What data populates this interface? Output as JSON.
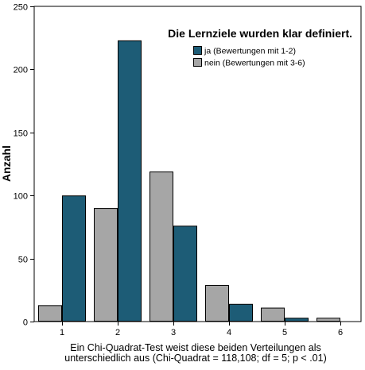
{
  "chart_data": {
    "type": "bar",
    "title": "Die Lernziele wurden klar definiert.",
    "xlabel": "Ein Chi-Quadrat-Test weist diese beiden Verteilungen als unterschiedlich aus (Chi-Quadrat = 118,108; df = 5; p < .01)",
    "xlabel_lines": [
      "Ein Chi-Quadrat-Test weist diese beiden Verteilungen als",
      "unterschiedlich aus (Chi-Quadrat = 118,108; df = 5; p < .01)"
    ],
    "ylabel": "Anzahl",
    "categories": [
      "1",
      "2",
      "3",
      "4",
      "5",
      "6"
    ],
    "ylim": [
      0,
      250
    ],
    "yticks": [
      0,
      50,
      100,
      150,
      200,
      250
    ],
    "grid": false,
    "legend_position": "top-right",
    "series": [
      {
        "name": "nein (Bewertungen mit 3-6)",
        "color": "#a6a6a6",
        "values": [
          13,
          90,
          119,
          29,
          11,
          3
        ]
      },
      {
        "name": "ja (Bewertungen mit 1-2)",
        "color": "#1d5c76",
        "values": [
          100,
          223,
          76,
          14,
          3,
          0
        ]
      }
    ],
    "legend_order": [
      1,
      0
    ]
  }
}
